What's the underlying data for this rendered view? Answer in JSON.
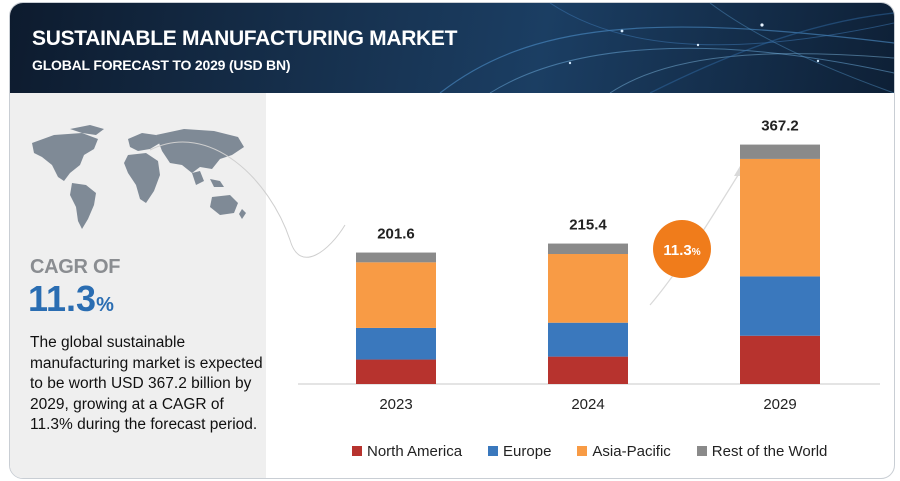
{
  "header": {
    "title": "SUSTAINABLE MANUFACTURING MARKET",
    "subtitle": "GLOBAL FORECAST TO 2029 (USD BN)"
  },
  "sidebar": {
    "cagr_label": "CAGR OF",
    "cagr_value": "11.3",
    "cagr_unit": "%",
    "description": "The global sustainable manufacturing  market is expected to be worth USD 367.2 billion by 2029, growing at a CAGR of 11.3% during the forecast period."
  },
  "badge": {
    "value": "11.3",
    "unit": "%",
    "color": "#f07c1b"
  },
  "colors": {
    "north_america": "#b7332e",
    "europe": "#3a78bd",
    "asia_pacific": "#f89b45",
    "rest_of_world": "#8a8a8a",
    "header_bg": "#15304d",
    "cagr_blue": "#2a6db2"
  },
  "chart_data": {
    "type": "bar",
    "stacked": true,
    "categories": [
      "2023",
      "2024",
      "2029"
    ],
    "totals": [
      201.6,
      215.4,
      367.2
    ],
    "series": [
      {
        "name": "North America",
        "values": [
          37.5,
          42.0,
          74.0
        ]
      },
      {
        "name": "Europe",
        "values": [
          48.5,
          52.0,
          91.0
        ]
      },
      {
        "name": "Asia-Pacific",
        "values": [
          100.6,
          105.4,
          180.2
        ]
      },
      {
        "name": "Rest of the World",
        "values": [
          15.0,
          16.0,
          22.0
        ]
      }
    ],
    "legend_position": "bottom",
    "grid": false
  }
}
